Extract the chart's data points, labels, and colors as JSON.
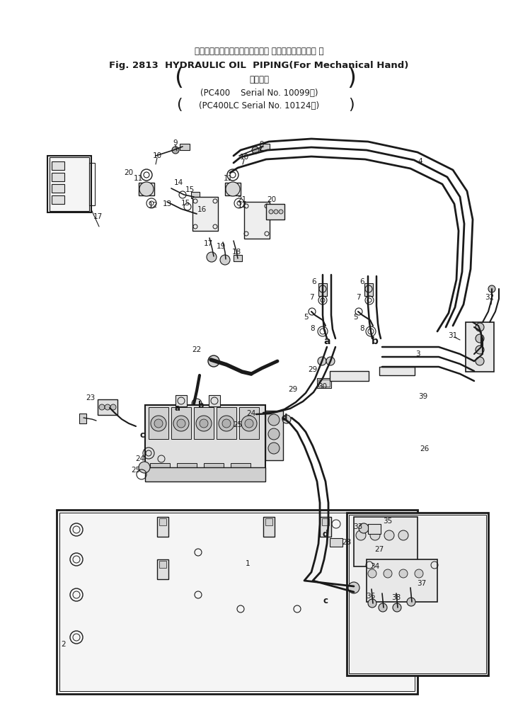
{
  "title_line1_jp": "ハイドロックオイルパイピング（ メカニカルハンド用 ）",
  "title_line2_en": "Fig. 2813  HYDRAULIC OIL  PIPING(For Mechanical Hand)",
  "title_line3_jp": "適用号機",
  "title_line4": "(PC400    Serial No. 10099～)",
  "title_line5": "(PC400LC Serial No. 10124～)",
  "bg_color": "#ffffff",
  "lc": "#1a1a1a",
  "figsize": [
    7.32,
    10.14
  ],
  "dpi": 100
}
